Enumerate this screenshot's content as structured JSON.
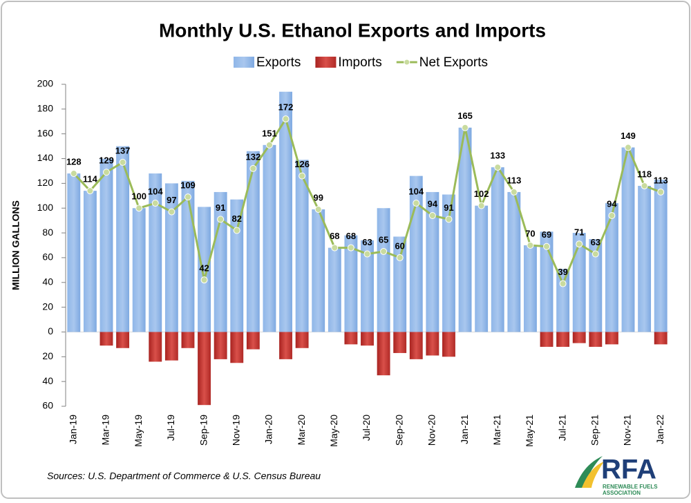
{
  "chart_data": {
    "type": "bar-line",
    "title": "Monthly U.S. Ethanol Exports and Imports",
    "y_label": "MILLION GALLONS",
    "source": "Sources: U.S. Department of Commerce & U.S. Census Bureau",
    "logo": {
      "name": "RFA",
      "tagline_1": "RENEWABLE FUELS",
      "tagline_2": "ASSOCIATION"
    },
    "categories": [
      "Jan-19",
      null,
      "Mar-19",
      null,
      "May-19",
      null,
      "Jul-19",
      null,
      "Sep-19",
      null,
      "Nov-19",
      null,
      "Jan-20",
      null,
      "Mar-20",
      null,
      "May-20",
      null,
      "Jul-20",
      null,
      "Sep-20",
      null,
      "Nov-20",
      null,
      "Jan-21",
      null,
      "Mar-21",
      null,
      "May-21",
      null,
      "Jul-21",
      null,
      "Sep-21",
      null,
      "Nov-21",
      null,
      "Jan-22"
    ],
    "series": [
      {
        "name": "Exports",
        "color": "#7ea9e1",
        "kind": "bar",
        "values": [
          128,
          114,
          140,
          150,
          100,
          128,
          120,
          122,
          101,
          113,
          107,
          146,
          151,
          194,
          139,
          99,
          68,
          78,
          74,
          100,
          77,
          126,
          113,
          111,
          165,
          102,
          133,
          113,
          70,
          81,
          51,
          80,
          75,
          104,
          149,
          118,
          123
        ]
      },
      {
        "name": "Imports",
        "color": "#c0302c",
        "kind": "bar",
        "values": [
          0,
          0,
          -11,
          -13,
          0,
          -24,
          -23,
          -13,
          -59,
          -22,
          -25,
          -14,
          0,
          -22,
          -13,
          0,
          0,
          -10,
          -11,
          -35,
          -17,
          -22,
          -19,
          -20,
          0,
          0,
          0,
          0,
          0,
          -12,
          -12,
          -9,
          -12,
          -10,
          0,
          0,
          -10
        ]
      },
      {
        "name": "Net Exports",
        "color": "#9bbb59",
        "kind": "line",
        "values": [
          128,
          114,
          129,
          137,
          100,
          104,
          97,
          109,
          42,
          91,
          82,
          132,
          151,
          172,
          126,
          99,
          68,
          68,
          63,
          65,
          60,
          104,
          94,
          91,
          165,
          102,
          133,
          113,
          70,
          69,
          39,
          71,
          63,
          94,
          149,
          118,
          113
        ]
      }
    ],
    "ylim": [
      -60,
      200
    ],
    "yticks": [
      200,
      180,
      160,
      140,
      120,
      100,
      80,
      60,
      40,
      20,
      0,
      {
        "value": -20,
        "label": "20"
      },
      {
        "value": -40,
        "label": "40"
      },
      {
        "value": -60,
        "label": "60"
      }
    ],
    "grid": false,
    "legend": "top"
  }
}
